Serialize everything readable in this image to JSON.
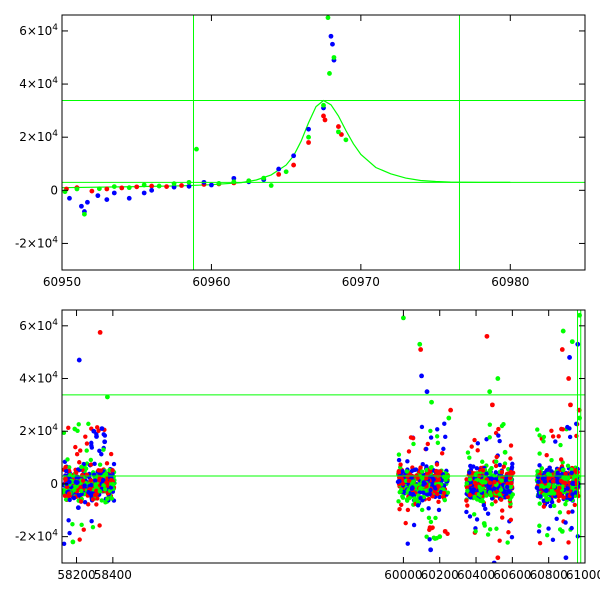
{
  "chart_data": [
    {
      "type": "scatter",
      "title": "",
      "xlabel": "",
      "ylabel": "",
      "xlim": [
        60950,
        60985
      ],
      "ylim": [
        -30000,
        66000
      ],
      "x_ticks": [
        {
          "value": 60950,
          "label": "60950"
        },
        {
          "value": 60960,
          "label": "60960"
        },
        {
          "value": 60970,
          "label": "60970"
        },
        {
          "value": 60980,
          "label": "60980"
        }
      ],
      "y_ticks": [
        {
          "value": -20000,
          "mant": "-2×10",
          "exp": "4"
        },
        {
          "value": 0,
          "mant": "0",
          "exp": ""
        },
        {
          "value": 20000,
          "mant": "2×10",
          "exp": "4"
        },
        {
          "value": 40000,
          "mant": "4×10",
          "exp": "4"
        },
        {
          "value": 60000,
          "mant": "6×10",
          "exp": "4"
        }
      ],
      "vlines": [
        60958.8,
        60976.6
      ],
      "hlines": [
        33800,
        3000
      ],
      "model_curve": {
        "color": "#00ff00",
        "x": [
          60950,
          60955,
          60958,
          60960,
          60962,
          60963,
          60964,
          60965,
          60965.5,
          60966,
          60966.5,
          60967,
          60967.5,
          60968,
          60968.5,
          60969,
          60969.5,
          60970,
          60971,
          60972,
          60973,
          60974,
          60975,
          60976,
          60978,
          60980
        ],
        "y": [
          1000,
          1400,
          1700,
          2100,
          2900,
          3900,
          5800,
          9500,
          13000,
          18500,
          25500,
          31500,
          33800,
          32200,
          28000,
          22500,
          17500,
          13500,
          8600,
          6200,
          4600,
          3700,
          3300,
          3100,
          3000,
          3000
        ]
      },
      "series": [
        {
          "name": "",
          "color": "#ff0000",
          "points": [
            [
              60950.3,
              500
            ],
            [
              60951,
              1000
            ],
            [
              60952,
              -300
            ],
            [
              60953,
              500
            ],
            [
              60954,
              900
            ],
            [
              60955,
              1300
            ],
            [
              60956,
              1600
            ],
            [
              60957,
              1400
            ],
            [
              60958,
              1800
            ],
            [
              60959.5,
              2200
            ],
            [
              60960.5,
              2400
            ],
            [
              60961.5,
              2800
            ],
            [
              60962.5,
              3500
            ],
            [
              60963.5,
              4200
            ],
            [
              60964.5,
              6000
            ],
            [
              60965.5,
              9500
            ],
            [
              60966.5,
              18000
            ],
            [
              60967.5,
              28000
            ],
            [
              60967.6,
              26500
            ],
            [
              60968.5,
              24000
            ],
            [
              60968.7,
              21000
            ]
          ]
        },
        {
          "name": "",
          "color": "#0000ff",
          "points": [
            [
              60950.5,
              -3000
            ],
            [
              60951.3,
              -6000
            ],
            [
              60951.5,
              -8000
            ],
            [
              60951.7,
              -4500
            ],
            [
              60952.4,
              -2000
            ],
            [
              60953,
              -3500
            ],
            [
              60953.5,
              -1000
            ],
            [
              60954.5,
              -3000
            ],
            [
              60955.5,
              -1000
            ],
            [
              60956,
              0
            ],
            [
              60957.5,
              1200
            ],
            [
              60958.5,
              1500
            ],
            [
              60959.5,
              3000
            ],
            [
              60960,
              2000
            ],
            [
              60961.5,
              4500
            ],
            [
              60962.5,
              3200
            ],
            [
              60963.5,
              4000
            ],
            [
              60964.5,
              8000
            ],
            [
              60965.5,
              13000
            ],
            [
              60966.5,
              23000
            ],
            [
              60967.5,
              31000
            ],
            [
              60968,
              58000
            ],
            [
              60968.1,
              55000
            ],
            [
              60968.2,
              49000
            ]
          ]
        },
        {
          "name": "",
          "color": "#00ff00",
          "points": [
            [
              60950.2,
              -500
            ],
            [
              60951,
              500
            ],
            [
              60951.5,
              -9000
            ],
            [
              60952.5,
              600
            ],
            [
              60953.5,
              1400
            ],
            [
              60954.5,
              1000
            ],
            [
              60955.5,
              2000
            ],
            [
              60956.5,
              1600
            ],
            [
              60957.5,
              2500
            ],
            [
              60958.5,
              3000
            ],
            [
              60959,
              15500
            ],
            [
              60960.5,
              2600
            ],
            [
              60961.5,
              3200
            ],
            [
              60962.5,
              3600
            ],
            [
              60963.5,
              4600
            ],
            [
              60964,
              1800
            ],
            [
              60965,
              7000
            ],
            [
              60966.5,
              20000
            ],
            [
              60967.5,
              32000
            ],
            [
              60967.8,
              65000
            ],
            [
              60967.9,
              44000
            ],
            [
              60968.2,
              50000
            ],
            [
              60968.5,
              22000
            ],
            [
              60969,
              19000
            ]
          ]
        }
      ]
    },
    {
      "type": "scatter",
      "title": "",
      "xlabel": "",
      "ylabel": "",
      "xlim": [
        58120,
        61000
      ],
      "ylim": [
        -30000,
        66000
      ],
      "x_ticks": [
        {
          "value": 58200,
          "label": "58200"
        },
        {
          "value": 58400,
          "label": "58400"
        },
        {
          "value": 60000,
          "label": "60000"
        },
        {
          "value": 60200,
          "label": "60200"
        },
        {
          "value": 60400,
          "label": "60400"
        },
        {
          "value": 60600,
          "label": "60600"
        },
        {
          "value": 60800,
          "label": "60800"
        },
        {
          "value": 61000,
          "label": "61000"
        }
      ],
      "y_ticks": [
        {
          "value": -20000,
          "mant": "-2×10",
          "exp": "4"
        },
        {
          "value": 0,
          "mant": "0",
          "exp": ""
        },
        {
          "value": 20000,
          "mant": "2×10",
          "exp": "4"
        },
        {
          "value": 40000,
          "mant": "4×10",
          "exp": "4"
        },
        {
          "value": 60000,
          "mant": "6×10",
          "exp": "4"
        }
      ],
      "vlines": [
        60958.8,
        60976.6
      ],
      "hlines": [
        33800,
        3000
      ],
      "seasons": [
        {
          "start": 58130,
          "end": 58410
        },
        {
          "start": 59970,
          "end": 60245
        },
        {
          "start": 60345,
          "end": 60605
        },
        {
          "start": 60735,
          "end": 60965
        }
      ],
      "series": [
        {
          "name": "",
          "color": "#ff0000",
          "points": [
            [
              58330,
              57500
            ],
            [
              60095,
              51000
            ],
            [
              60260,
              28000
            ],
            [
              60460,
              56000
            ],
            [
              60490,
              30000
            ],
            [
              60875,
              51000
            ],
            [
              60910,
              40000
            ],
            [
              60920,
              30000
            ],
            [
              60968,
              28000
            ],
            [
              60230,
              -18000
            ],
            [
              60520,
              -28000
            ]
          ]
        },
        {
          "name": "",
          "color": "#0000ff",
          "points": [
            [
              58215,
              47000
            ],
            [
              58295,
              20000
            ],
            [
              58310,
              18000
            ],
            [
              58340,
              21000
            ],
            [
              58355,
              16000
            ],
            [
              60100,
              41000
            ],
            [
              60130,
              35000
            ],
            [
              60915,
              48000
            ],
            [
              60960,
              53000
            ],
            [
              60500,
              -30000
            ],
            [
              60150,
              -25000
            ],
            [
              58210,
              -9000
            ],
            [
              60895,
              -28000
            ]
          ]
        },
        {
          "name": "",
          "color": "#00ff00",
          "points": [
            [
              58370,
              33000
            ],
            [
              60000,
              63000
            ],
            [
              60090,
              53000
            ],
            [
              60155,
              31000
            ],
            [
              60250,
              25000
            ],
            [
              60475,
              35000
            ],
            [
              60520,
              40000
            ],
            [
              60560,
              12000
            ],
            [
              60880,
              58000
            ],
            [
              60930,
              54000
            ],
            [
              60970,
              64000
            ],
            [
              60970,
              25000
            ],
            [
              58180,
              -22000
            ],
            [
              60200,
              -20000
            ],
            [
              60445,
              -15000
            ],
            [
              60875,
              -18000
            ]
          ]
        }
      ]
    }
  ]
}
